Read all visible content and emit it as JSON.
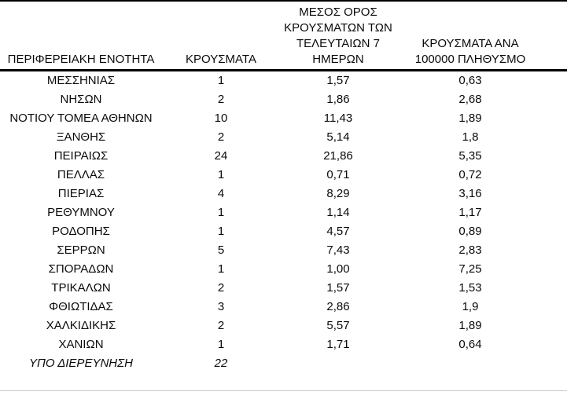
{
  "header": {
    "col1": "ΠΕΡΙΦΕΡΕΙΑΚΗ ΕΝΟΤΗΤΑ",
    "col2": "ΚΡΟΥΣΜΑΤΑ",
    "col3_lines": [
      "ΜΕΣΟΣ ΟΡΟΣ",
      "ΚΡΟΥΣΜΑΤΩΝ ΤΩΝ",
      "ΤΕΛΕΥΤΑΙΩΝ 7",
      "ΗΜΕΡΩΝ"
    ],
    "col4_lines": [
      "ΚΡΟΥΣΜΑΤΑ ΑΝΑ",
      "100000 ΠΛΗΘΥΣΜΟ"
    ]
  },
  "table": {
    "rows": [
      {
        "region": "ΜΕΣΣΗΝΙΑΣ",
        "cases": "1",
        "avg7": "1,57",
        "per100k": "0,63"
      },
      {
        "region": "ΝΗΣΩΝ",
        "cases": "2",
        "avg7": "1,86",
        "per100k": "2,68"
      },
      {
        "region": "ΝΟΤΙΟΥ ΤΟΜΕΑ ΑΘΗΝΩΝ",
        "cases": "10",
        "avg7": "11,43",
        "per100k": "1,89"
      },
      {
        "region": "ΞΑΝΘΗΣ",
        "cases": "2",
        "avg7": "5,14",
        "per100k": "1,8"
      },
      {
        "region": "ΠΕΙΡΑΙΩΣ",
        "cases": "24",
        "avg7": "21,86",
        "per100k": "5,35"
      },
      {
        "region": "ΠΕΛΛΑΣ",
        "cases": "1",
        "avg7": "0,71",
        "per100k": "0,72"
      },
      {
        "region": "ΠΙΕΡΙΑΣ",
        "cases": "4",
        "avg7": "8,29",
        "per100k": "3,16"
      },
      {
        "region": "ΡΕΘΥΜΝΟΥ",
        "cases": "1",
        "avg7": "1,14",
        "per100k": "1,17"
      },
      {
        "region": "ΡΟΔΟΠΗΣ",
        "cases": "1",
        "avg7": "4,57",
        "per100k": "0,89"
      },
      {
        "region": "ΣΕΡΡΩΝ",
        "cases": "5",
        "avg7": "7,43",
        "per100k": "2,83"
      },
      {
        "region": "ΣΠΟΡΑΔΩΝ",
        "cases": "1",
        "avg7": "1,00",
        "per100k": "7,25"
      },
      {
        "region": "ΤΡΙΚΑΛΩΝ",
        "cases": "2",
        "avg7": "1,57",
        "per100k": "1,53"
      },
      {
        "region": "ΦΘΙΩΤΙΔΑΣ",
        "cases": "3",
        "avg7": "2,86",
        "per100k": "1,9"
      },
      {
        "region": "ΧΑΛΚΙΔΙΚΗΣ",
        "cases": "2",
        "avg7": "5,57",
        "per100k": "1,89"
      },
      {
        "region": "ΧΑΝΙΩΝ",
        "cases": "1",
        "avg7": "1,71",
        "per100k": "0,64"
      },
      {
        "region": "ΥΠΟ ΔΙΕΡΕΥΝΗΣΗ",
        "cases": "22",
        "avg7": "",
        "per100k": ""
      }
    ]
  },
  "chart_data": {
    "type": "table",
    "columns": [
      "ΠΕΡΙΦΕΡΕΙΑΚΗ ΕΝΟΤΗΤΑ",
      "ΚΡΟΥΣΜΑΤΑ",
      "ΜΕΣΟΣ ΟΡΟΣ ΚΡΟΥΣΜΑΤΩΝ ΤΩΝ ΤΕΛΕΥΤΑΙΩΝ 7 ΗΜΕΡΩΝ",
      "ΚΡΟΥΣΜΑΤΑ ΑΝΑ 100000 ΠΛΗΘΥΣΜΟ"
    ],
    "rows": [
      [
        "ΜΕΣΣΗΝΙΑΣ",
        "1",
        "1,57",
        "0,63"
      ],
      [
        "ΝΗΣΩΝ",
        "2",
        "1,86",
        "2,68"
      ],
      [
        "ΝΟΤΙΟΥ ΤΟΜΕΑ ΑΘΗΝΩΝ",
        "10",
        "11,43",
        "1,89"
      ],
      [
        "ΞΑΝΘΗΣ",
        "2",
        "5,14",
        "1,8"
      ],
      [
        "ΠΕΙΡΑΙΩΣ",
        "24",
        "21,86",
        "5,35"
      ],
      [
        "ΠΕΛΛΑΣ",
        "1",
        "0,71",
        "0,72"
      ],
      [
        "ΠΙΕΡΙΑΣ",
        "4",
        "8,29",
        "3,16"
      ],
      [
        "ΡΕΘΥΜΝΟΥ",
        "1",
        "1,14",
        "1,17"
      ],
      [
        "ΡΟΔΟΠΗΣ",
        "1",
        "4,57",
        "0,89"
      ],
      [
        "ΣΕΡΡΩΝ",
        "5",
        "7,43",
        "2,83"
      ],
      [
        "ΣΠΟΡΑΔΩΝ",
        "1",
        "1,00",
        "7,25"
      ],
      [
        "ΤΡΙΚΑΛΩΝ",
        "2",
        "1,57",
        "1,53"
      ],
      [
        "ΦΘΙΩΤΙΔΑΣ",
        "3",
        "2,86",
        "1,9"
      ],
      [
        "ΧΑΛΚΙΔΙΚΗΣ",
        "2",
        "5,57",
        "1,89"
      ],
      [
        "ΧΑΝΙΩΝ",
        "1",
        "1,71",
        "0,64"
      ],
      [
        "ΥΠΟ ΔΙΕΡΕΥΝΗΣΗ",
        "22",
        "",
        ""
      ]
    ]
  },
  "colors": {
    "border_strong": "#000000",
    "bottom_rule": "#c8c8c8",
    "text": "#0a0a0a",
    "background": "#ffffff"
  }
}
